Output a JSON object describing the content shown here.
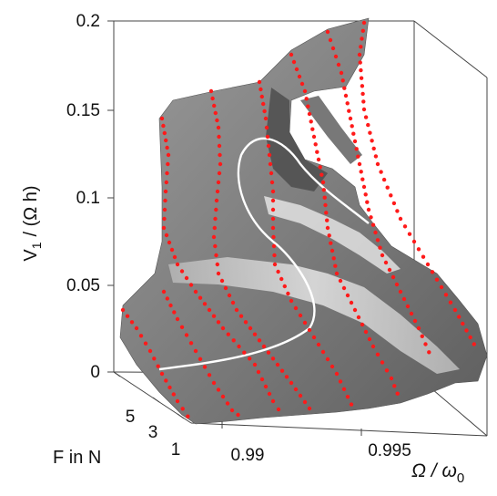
{
  "chart_data": {
    "type": "surface-3d",
    "title": "",
    "xlabel": "Ω / ω",
    "xlabel_sub": "0",
    "ylabel": "F in N",
    "zlabel_main": "V",
    "zlabel_sub": "1",
    "zlabel_tail": "/ (Ω h)",
    "x_ticks": [
      "0.99",
      "0.995"
    ],
    "y_ticks": [
      "1",
      "3",
      "5"
    ],
    "z_ticks": [
      "0",
      "0.05",
      "0.1",
      "0.15",
      "0.2"
    ],
    "xlim": [
      0.988,
      0.998
    ],
    "ylim": [
      0,
      6
    ],
    "zlim": [
      0,
      0.2
    ],
    "surface_color": "#8a8a8a",
    "marker_color": "#ff1a1a",
    "curve_color": "#ffffff",
    "grid": false,
    "series": [
      {
        "force": 1,
        "x": [
          0.9885,
          0.9888,
          0.9891,
          0.9894,
          0.9897,
          0.99,
          0.9903,
          0.9906,
          0.9909
        ],
        "y": [
          0.035,
          0.028,
          0.02,
          0.014,
          0.009,
          0.006,
          0.004,
          0.003,
          0.002
        ]
      },
      {
        "force": 3,
        "x": [
          0.9885,
          0.9889,
          0.9893,
          0.9897,
          0.99,
          0.9903,
          0.9906,
          0.991
        ],
        "y": [
          0.06,
          0.055,
          0.048,
          0.04,
          0.032,
          0.025,
          0.018,
          0.012
        ]
      },
      {
        "force": 5,
        "x": [
          0.989,
          0.9894,
          0.9898,
          0.99,
          0.9902,
          0.9904,
          0.9907,
          0.991
        ],
        "y": [
          0.095,
          0.085,
          0.075,
          0.068,
          0.06,
          0.052,
          0.044,
          0.036
        ]
      }
    ]
  }
}
